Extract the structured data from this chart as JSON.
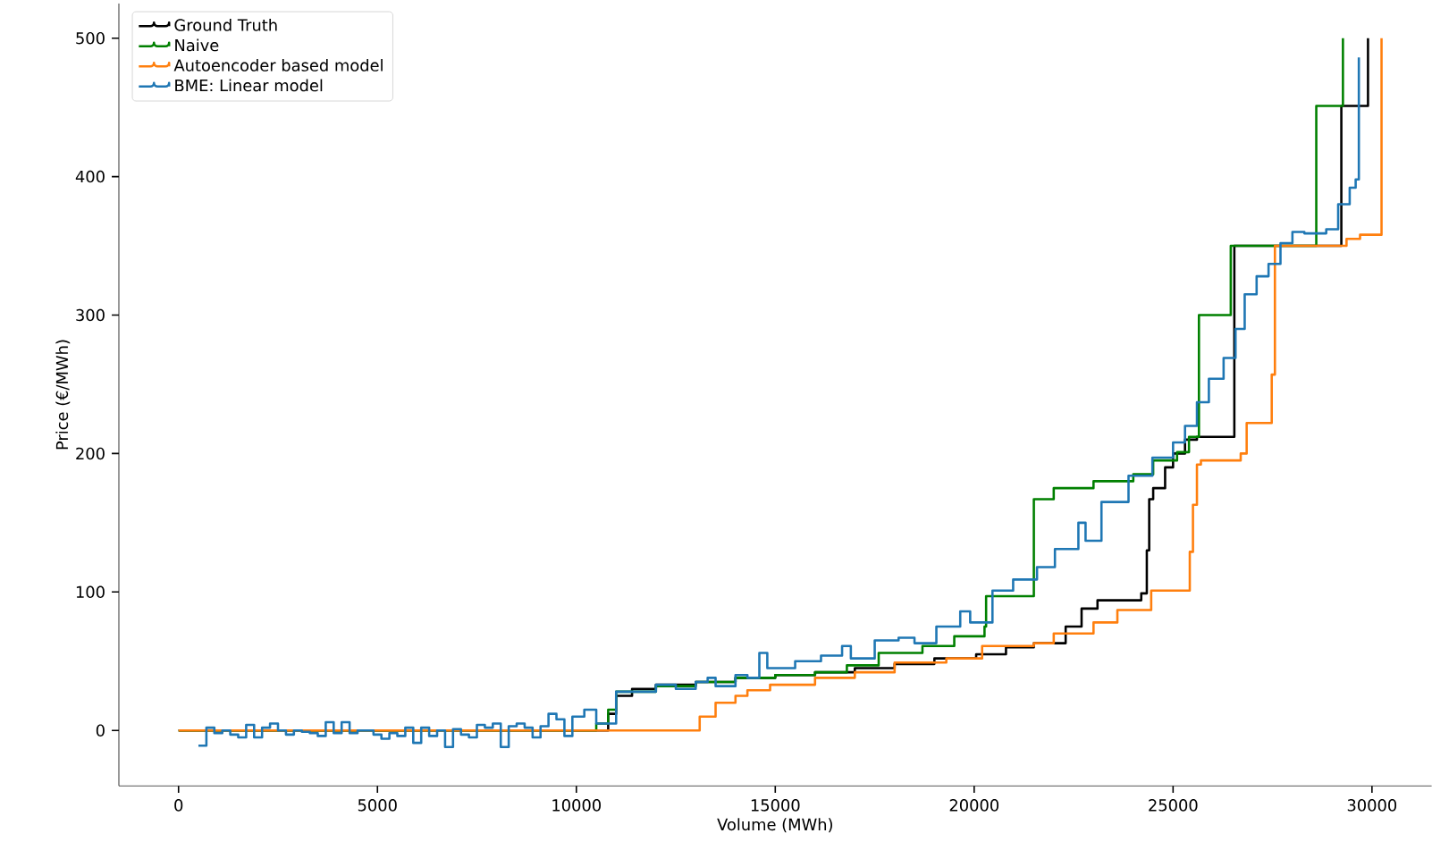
{
  "chart_data": {
    "type": "step",
    "xlabel": "Volume (MWh)",
    "ylabel": "Price (€/MWh)",
    "xlim": [
      -1500,
      31500
    ],
    "ylim": [
      -40,
      525
    ],
    "xticks": [
      0,
      5000,
      10000,
      15000,
      20000,
      25000,
      30000
    ],
    "yticks": [
      0,
      100,
      200,
      300,
      400,
      500
    ],
    "legend": "top left",
    "grid": false,
    "marker": "none",
    "line_style": "solid",
    "series": [
      {
        "name": "Ground Truth",
        "color": "#000000",
        "x": [
          0,
          10800,
          11000,
          11400,
          12000,
          13000,
          14000,
          15000,
          16000,
          17000,
          18000,
          19000,
          20050,
          20800,
          21500,
          22300,
          22700,
          23100,
          24200,
          24340,
          24400,
          24500,
          24800,
          25000,
          25300,
          25600,
          26540,
          29230,
          29900
        ],
        "values": [
          0,
          12,
          25,
          30,
          33,
          35,
          38,
          40,
          42,
          45,
          48,
          52,
          55,
          60,
          63,
          75,
          88,
          94,
          99,
          130,
          167,
          175,
          190,
          200,
          210,
          212,
          350,
          451,
          500
        ]
      },
      {
        "name": "Naive",
        "color": "#008000",
        "x": [
          0,
          10500,
          10800,
          11000,
          12000,
          13000,
          14000,
          15000,
          16000,
          16800,
          17600,
          18700,
          19500,
          20260,
          20300,
          21500,
          22000,
          23000,
          24000,
          24500,
          25100,
          25400,
          25650,
          26450,
          28600,
          29270
        ],
        "values": [
          0,
          5,
          15,
          28,
          32,
          35,
          38,
          40,
          42,
          47,
          56,
          61,
          68,
          75,
          97,
          167,
          175,
          180,
          185,
          195,
          201,
          212,
          300,
          350,
          451,
          500
        ]
      },
      {
        "name": "Autoencoder based model",
        "color": "#ff7f0e",
        "x": [
          0,
          13100,
          13500,
          14000,
          14300,
          14870,
          16000,
          17000,
          18000,
          19300,
          20200,
          21500,
          22000,
          23000,
          23600,
          24450,
          25420,
          25500,
          25600,
          25700,
          26700,
          26850,
          27480,
          27560,
          29360,
          29700,
          30240
        ],
        "values": [
          0,
          10,
          20,
          25,
          29,
          33,
          38,
          42,
          49,
          52,
          61,
          63,
          70,
          78,
          87,
          101,
          129,
          163,
          192,
          195,
          200,
          222,
          257,
          350,
          355,
          358,
          500
        ]
      },
      {
        "name": "BME: Linear model",
        "color": "#1f77b4",
        "x": [
          500,
          700,
          900,
          1100,
          1300,
          1500,
          1700,
          1900,
          2100,
          2300,
          2500,
          2700,
          2900,
          3100,
          3300,
          3500,
          3700,
          3900,
          4100,
          4300,
          4500,
          4700,
          4900,
          5100,
          5300,
          5500,
          5700,
          5900,
          6100,
          6300,
          6500,
          6700,
          6900,
          7100,
          7300,
          7500,
          7700,
          7900,
          8100,
          8300,
          8500,
          8700,
          8900,
          9100,
          9300,
          9500,
          9700,
          9900,
          10200,
          10500,
          11000,
          11500,
          12000,
          12500,
          13000,
          13300,
          13500,
          14000,
          14300,
          14600,
          14800,
          15500,
          16150,
          16680,
          16900,
          17500,
          18100,
          18500,
          19050,
          19650,
          19900,
          20460,
          20980,
          21580,
          22030,
          22620,
          22800,
          23200,
          23880,
          24480,
          25000,
          25300,
          25600,
          25900,
          26270,
          26570,
          26800,
          27100,
          27400,
          27700,
          28000,
          28300,
          28850,
          29150,
          29440,
          29590,
          29670
        ],
        "values": [
          -11,
          2,
          -2,
          0,
          -3,
          -5,
          4,
          -5,
          2,
          5,
          0,
          -3,
          0,
          -1,
          -2,
          -4,
          6,
          -2,
          6,
          -2,
          0,
          0,
          -3,
          -6,
          -2,
          -4,
          2,
          -9,
          2,
          -4,
          0,
          -12,
          1,
          -3,
          -5,
          4,
          2,
          5,
          -12,
          3,
          5,
          2,
          -5,
          3,
          12,
          8,
          -4,
          10,
          15,
          5,
          28,
          28,
          33,
          30,
          35,
          38,
          32,
          40,
          38,
          56,
          45,
          50,
          54,
          61,
          52,
          65,
          67,
          63,
          75,
          86,
          78,
          101,
          109,
          118,
          131,
          150,
          137,
          165,
          184,
          197,
          208,
          220,
          237,
          254,
          269,
          290,
          315,
          328,
          337,
          352,
          360,
          359,
          362,
          380,
          392,
          398,
          486
        ]
      }
    ]
  }
}
